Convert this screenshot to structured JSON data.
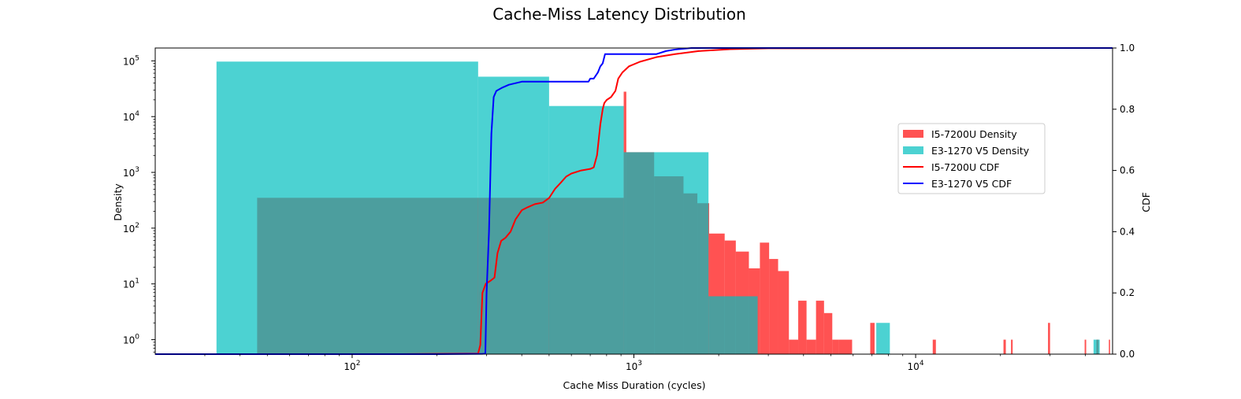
{
  "chart_data": {
    "type": "histogram",
    "title": "Cache-Miss Latency Distribution",
    "xlabel": "Cache Miss Duration (cycles)",
    "ylabel": "Density",
    "y2label": "CDF",
    "xscale": "log",
    "yscale": "log",
    "xlim": [
      20,
      50000
    ],
    "ylim": [
      0.55,
      170000
    ],
    "y2lim": [
      0,
      1.0
    ],
    "x_major_ticks": [
      {
        "value": 100,
        "base": "10",
        "exp": "2"
      },
      {
        "value": 1000,
        "base": "10",
        "exp": "3"
      },
      {
        "value": 10000,
        "base": "10",
        "exp": "4"
      }
    ],
    "y_major_ticks": [
      {
        "value": 1,
        "base": "10",
        "exp": "0"
      },
      {
        "value": 10,
        "base": "10",
        "exp": "1"
      },
      {
        "value": 100,
        "base": "10",
        "exp": "2"
      },
      {
        "value": 1000,
        "base": "10",
        "exp": "3"
      },
      {
        "value": 10000,
        "base": "10",
        "exp": "4"
      },
      {
        "value": 100000,
        "base": "10",
        "exp": "5"
      }
    ],
    "y2_ticks": [
      "0.0",
      "0.2",
      "0.4",
      "0.6",
      "0.8",
      "1.0"
    ],
    "legend_position": "right",
    "series": [
      {
        "name": "I5-7200U Density",
        "kind": "bar",
        "color": "#ff0000",
        "alpha": 0.68,
        "bins": [
          [
            46,
            920,
            350
          ],
          [
            920,
            940,
            28000
          ],
          [
            940,
            1180,
            2300
          ],
          [
            1180,
            1500,
            850
          ],
          [
            1500,
            1680,
            420
          ],
          [
            1680,
            1850,
            280
          ],
          [
            1850,
            2100,
            80
          ],
          [
            2100,
            2300,
            60
          ],
          [
            2300,
            2560,
            38
          ],
          [
            2560,
            2800,
            19
          ],
          [
            2800,
            3020,
            55
          ],
          [
            3020,
            3250,
            28
          ],
          [
            3250,
            3550,
            17
          ],
          [
            3550,
            3830,
            1.0
          ],
          [
            3830,
            4100,
            5.0
          ],
          [
            4100,
            4430,
            1.0
          ],
          [
            4430,
            4730,
            5.0
          ],
          [
            4730,
            5060,
            3.0
          ],
          [
            5060,
            5350,
            1.0
          ],
          [
            5350,
            5950,
            1.0
          ],
          [
            6900,
            7150,
            2.0
          ],
          [
            11500,
            11800,
            1.0
          ],
          [
            20500,
            20900,
            1.0
          ],
          [
            21800,
            22100,
            1.0
          ],
          [
            29500,
            30000,
            2.0
          ],
          [
            39800,
            40300,
            1.0
          ],
          [
            43800,
            44600,
            1.0
          ],
          [
            48500,
            49000,
            1.0
          ]
        ]
      },
      {
        "name": "E3-1270 V5 Density",
        "kind": "bar",
        "color": "#00bfbf",
        "alpha": 0.7,
        "bins": [
          [
            33,
            280,
            97000
          ],
          [
            280,
            500,
            52000
          ],
          [
            500,
            920,
            15500
          ],
          [
            920,
            1840,
            2300
          ],
          [
            1840,
            2750,
            6.0
          ],
          [
            7250,
            8100,
            2.0
          ],
          [
            42800,
            45000,
            1.0
          ]
        ]
      },
      {
        "name": "I5-7200U CDF",
        "kind": "line",
        "color": "#ff0000",
        "points": [
          [
            20,
            0.0
          ],
          [
            150,
            0.0
          ],
          [
            280,
            0.002
          ],
          [
            285,
            0.03
          ],
          [
            290,
            0.2
          ],
          [
            298,
            0.23
          ],
          [
            310,
            0.24
          ],
          [
            320,
            0.25
          ],
          [
            328,
            0.33
          ],
          [
            338,
            0.37
          ],
          [
            350,
            0.38
          ],
          [
            365,
            0.4
          ],
          [
            380,
            0.44
          ],
          [
            400,
            0.47
          ],
          [
            420,
            0.48
          ],
          [
            445,
            0.49
          ],
          [
            475,
            0.495
          ],
          [
            500,
            0.51
          ],
          [
            525,
            0.54
          ],
          [
            550,
            0.56
          ],
          [
            575,
            0.58
          ],
          [
            600,
            0.59
          ],
          [
            650,
            0.6
          ],
          [
            700,
            0.605
          ],
          [
            720,
            0.61
          ],
          [
            740,
            0.65
          ],
          [
            760,
            0.75
          ],
          [
            775,
            0.8
          ],
          [
            785,
            0.82
          ],
          [
            800,
            0.83
          ],
          [
            830,
            0.84
          ],
          [
            860,
            0.86
          ],
          [
            880,
            0.9
          ],
          [
            910,
            0.92
          ],
          [
            960,
            0.94
          ],
          [
            1050,
            0.955
          ],
          [
            1200,
            0.97
          ],
          [
            1400,
            0.98
          ],
          [
            1700,
            0.99
          ],
          [
            2200,
            0.996
          ],
          [
            3000,
            0.999
          ],
          [
            50000,
            1.0
          ]
        ]
      },
      {
        "name": "E3-1270 V5 CDF",
        "kind": "line",
        "color": "#0000ff",
        "points": [
          [
            20,
            0.0
          ],
          [
            200,
            0.0
          ],
          [
            290,
            0.001
          ],
          [
            297,
            0.0015
          ],
          [
            300,
            0.2
          ],
          [
            306,
            0.4
          ],
          [
            312,
            0.72
          ],
          [
            318,
            0.84
          ],
          [
            325,
            0.86
          ],
          [
            340,
            0.87
          ],
          [
            360,
            0.88
          ],
          [
            400,
            0.89
          ],
          [
            500,
            0.89
          ],
          [
            600,
            0.89
          ],
          [
            690,
            0.89
          ],
          [
            700,
            0.9
          ],
          [
            720,
            0.9
          ],
          [
            745,
            0.92
          ],
          [
            760,
            0.94
          ],
          [
            775,
            0.95
          ],
          [
            790,
            0.98
          ],
          [
            1000,
            0.98
          ],
          [
            1200,
            0.98
          ],
          [
            1300,
            0.99
          ],
          [
            1400,
            0.995
          ],
          [
            1600,
            1.0
          ],
          [
            50000,
            1.0
          ]
        ]
      }
    ]
  }
}
